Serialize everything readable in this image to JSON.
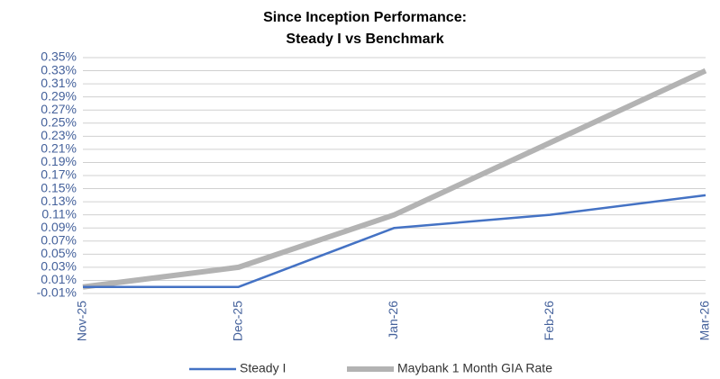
{
  "chart_data": {
    "type": "line",
    "title": [
      "Since Inception Performance:",
      "Steady I vs Benchmark"
    ],
    "categories": [
      "Nov-25",
      "Dec-25",
      "Jan-26",
      "Feb-26",
      "Mar-26"
    ],
    "series": [
      {
        "name": "Steady I",
        "color": "#4472c4",
        "width": 2.5,
        "values": [
          0,
          0,
          0.09,
          0.11,
          0.14
        ]
      },
      {
        "name": "Maybank 1 Month GIA Rate",
        "color": "#b3b3b3",
        "width": 6,
        "values": [
          0,
          0.03,
          0.11,
          0.22,
          0.33
        ]
      }
    ],
    "ylim": [
      -0.01,
      0.35
    ],
    "yticks": [
      {
        "value": -0.01,
        "label": "-0.01%"
      },
      {
        "value": 0.01,
        "label": "0.01%"
      },
      {
        "value": 0.03,
        "label": "0.03%"
      },
      {
        "value": 0.05,
        "label": "0.05%"
      },
      {
        "value": 0.07,
        "label": "0.07%"
      },
      {
        "value": 0.09,
        "label": "0.09%"
      },
      {
        "value": 0.11,
        "label": "0.11%"
      },
      {
        "value": 0.13,
        "label": "0.13%"
      },
      {
        "value": 0.15,
        "label": "0.15%"
      },
      {
        "value": 0.17,
        "label": "0.17%"
      },
      {
        "value": 0.19,
        "label": "0.19%"
      },
      {
        "value": 0.21,
        "label": "0.21%"
      },
      {
        "value": 0.23,
        "label": "0.23%"
      },
      {
        "value": 0.25,
        "label": "0.25%"
      },
      {
        "value": 0.27,
        "label": "0.27%"
      },
      {
        "value": 0.29,
        "label": "0.29%"
      },
      {
        "value": 0.31,
        "label": "0.31%"
      },
      {
        "value": 0.33,
        "label": "0.33%"
      },
      {
        "value": 0.35,
        "label": "0.35%"
      }
    ],
    "grid": true,
    "legend": "bottom"
  }
}
